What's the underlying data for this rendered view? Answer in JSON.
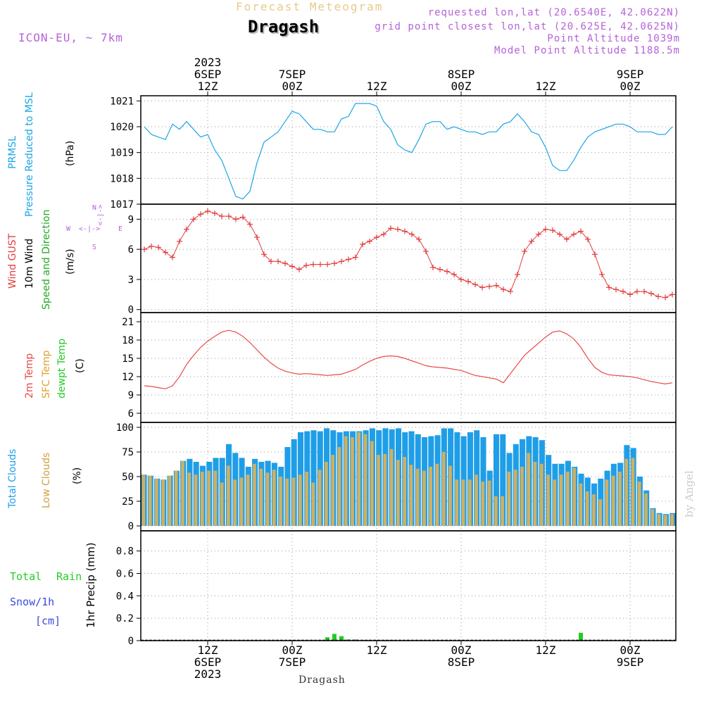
{
  "header": {
    "title": "Forecast Meteogram",
    "location": "Dragash",
    "model": "ICON-EU, ~ 7km",
    "requested": "requested lon,lat (20.6540E, 42.0622N)",
    "grid_point": "grid point closest lon,lat (20.625E, 42.0625N)",
    "point_altitude": "Point Altitude 1039m",
    "model_altitude": "Model Point Altitude 1188.5m",
    "credit": "by Angel",
    "bottom_label": "Dragash"
  },
  "time_axis": {
    "top_labels": [
      {
        "lines": [
          "2023",
          "6SEP",
          "12Z"
        ]
      },
      {
        "lines": [
          "7SEP",
          "00Z"
        ]
      },
      {
        "lines": [
          "12Z"
        ]
      },
      {
        "lines": [
          "8SEP",
          "00Z"
        ]
      },
      {
        "lines": [
          "12Z"
        ]
      },
      {
        "lines": [
          "9SEP",
          "00Z"
        ]
      }
    ],
    "bottom_labels": [
      {
        "lines": [
          "12Z",
          "6SEP",
          "2023"
        ]
      },
      {
        "lines": [
          "00Z",
          "7SEP"
        ]
      },
      {
        "lines": [
          "12Z"
        ]
      },
      {
        "lines": [
          "00Z",
          "8SEP"
        ]
      },
      {
        "lines": [
          "12Z"
        ]
      },
      {
        "lines": [
          "00Z",
          "9SEP"
        ]
      }
    ],
    "tick_hours": [
      12,
      24,
      36,
      48,
      60,
      72
    ],
    "range_hours": [
      2.5,
      78.5
    ]
  },
  "panel_labels": {
    "pressure": [
      "PRMSL",
      "Pressure Reduced to MSL",
      "(hPa)"
    ],
    "wind": [
      "Wind GUST",
      "10m Wind",
      "Speed and Direction",
      "(m/s)"
    ],
    "compass": {
      "n": "N",
      "s": "S",
      "w": "W",
      "e": "E"
    },
    "temp": [
      "2m Temp",
      "SFC Temp",
      "dewpt Temp",
      "(C)"
    ],
    "clouds": [
      "Total Clouds",
      "Low Clouds",
      "(%)"
    ],
    "precip": [
      "Total",
      "Rain",
      "Snow/1h",
      "[cm]",
      "1hr Precip (mm)"
    ]
  },
  "colors": {
    "pressure": "#1ca6e6",
    "gust": "#e23c3c",
    "wind": "#000000",
    "temp2m": "#e84a4a",
    "sfc": "#e0a030",
    "dewpt": "#22cc22",
    "total_clouds": "#1f9ee8",
    "low_clouds": "#d0b060",
    "rain": "#22cc22",
    "snow": "#3b4be0",
    "purple": "#b463d8"
  },
  "chart_data": [
    {
      "type": "line",
      "name": "pressure",
      "y_ticks": [
        1017,
        1018,
        1019,
        1020,
        1021
      ],
      "ylim": [
        1017,
        1021.2
      ],
      "x_start_hour": 3,
      "x_step_hours": 1,
      "values": [
        1020.0,
        1019.7,
        1019.6,
        1019.5,
        1020.1,
        1019.9,
        1020.2,
        1019.9,
        1019.6,
        1019.7,
        1019.1,
        1018.7,
        1018.0,
        1017.3,
        1017.2,
        1017.5,
        1018.6,
        1019.4,
        1019.6,
        1019.8,
        1020.2,
        1020.6,
        1020.5,
        1020.2,
        1019.9,
        1019.9,
        1019.8,
        1019.8,
        1020.3,
        1020.4,
        1020.9,
        1020.9,
        1020.9,
        1020.8,
        1020.2,
        1019.9,
        1019.3,
        1019.1,
        1019.0,
        1019.5,
        1020.1,
        1020.2,
        1020.2,
        1019.9,
        1020.0,
        1019.9,
        1019.8,
        1019.8,
        1019.7,
        1019.8,
        1019.8,
        1020.1,
        1020.2,
        1020.5,
        1020.2,
        1019.8,
        1019.7,
        1019.2,
        1018.5,
        1018.3,
        1018.3,
        1018.7,
        1019.2,
        1019.6,
        1019.8,
        1019.9,
        1020.0,
        1020.1,
        1020.1,
        1020.0,
        1019.8,
        1019.8,
        1019.8,
        1019.7,
        1019.7,
        1020.0
      ]
    },
    {
      "type": "line",
      "name": "wind",
      "y_ticks": [
        0,
        3,
        6,
        9
      ],
      "ylim": [
        -0.3,
        10.5
      ],
      "x_start_hour": 3,
      "x_step_hours": 1,
      "gust": [
        6.0,
        6.3,
        6.2,
        5.7,
        5.2,
        6.8,
        8.0,
        9.0,
        9.5,
        9.8,
        9.6,
        9.3,
        9.3,
        9.0,
        9.2,
        8.5,
        7.2,
        5.5,
        4.8,
        4.8,
        4.6,
        4.3,
        4.0,
        4.4,
        4.5,
        4.5,
        4.5,
        4.6,
        4.8,
        5.0,
        5.2,
        6.5,
        6.8,
        7.2,
        7.5,
        8.1,
        8.0,
        7.8,
        7.5,
        7.0,
        5.8,
        4.2,
        4.0,
        3.8,
        3.5,
        3.0,
        2.8,
        2.5,
        2.2,
        2.3,
        2.4,
        2.0,
        1.8,
        3.5,
        5.8,
        6.8,
        7.5,
        8.0,
        7.9,
        7.5,
        7.0,
        7.5,
        7.8,
        7.0,
        5.5,
        3.5,
        2.2,
        2.0,
        1.8,
        1.5,
        1.8,
        1.8,
        1.6,
        1.3,
        1.2,
        1.5
      ]
    },
    {
      "type": "line",
      "name": "temperature",
      "y_ticks": [
        6,
        9,
        12,
        15,
        18,
        21
      ],
      "ylim": [
        4.5,
        22.5
      ],
      "x_start_hour": 3,
      "x_step_hours": 1,
      "t2m": [
        10.5,
        10.4,
        10.2,
        10.0,
        10.5,
        12.0,
        14.0,
        15.5,
        16.8,
        17.8,
        18.6,
        19.3,
        19.6,
        19.3,
        18.6,
        17.6,
        16.4,
        15.2,
        14.2,
        13.4,
        12.9,
        12.6,
        12.4,
        12.5,
        12.4,
        12.3,
        12.2,
        12.3,
        12.4,
        12.8,
        13.2,
        13.9,
        14.5,
        15.0,
        15.3,
        15.4,
        15.3,
        15.0,
        14.6,
        14.2,
        13.8,
        13.6,
        13.5,
        13.4,
        13.2,
        13.0,
        12.6,
        12.2,
        12.0,
        11.8,
        11.6,
        11.0,
        12.5,
        14.0,
        15.5,
        16.5,
        17.5,
        18.5,
        19.3,
        19.5,
        19.0,
        18.2,
        16.8,
        15.0,
        13.5,
        12.7,
        12.3,
        12.2,
        12.1,
        12.0,
        11.8,
        11.5,
        11.2,
        11.0,
        10.8,
        11.0
      ]
    },
    {
      "type": "bar",
      "name": "clouds",
      "y_ticks": [
        0,
        25,
        50,
        75,
        100
      ],
      "ylim": [
        -5,
        105
      ],
      "x_start_hour": 3,
      "x_step_hours": 1,
      "total": [
        52,
        51,
        48,
        47,
        51,
        56,
        66,
        68,
        65,
        61,
        65,
        69,
        69,
        83,
        74,
        69,
        60,
        68,
        65,
        66,
        64,
        60,
        80,
        88,
        95,
        96,
        97,
        96,
        99,
        97,
        95,
        96,
        96,
        96,
        97,
        99,
        97,
        99,
        98,
        99,
        95,
        96,
        93,
        90,
        91,
        92,
        99,
        99,
        95,
        91,
        95,
        97,
        90,
        56,
        93,
        93,
        74,
        83,
        88,
        91,
        90,
        87,
        72,
        63,
        63,
        66,
        60,
        53,
        49,
        43,
        48,
        56,
        63,
        64,
        82,
        79,
        50,
        36,
        18,
        13,
        12,
        13
      ],
      "low": [
        52,
        51,
        48,
        47,
        51,
        56,
        66,
        54,
        52,
        55,
        56,
        56,
        44,
        61,
        47,
        49,
        52,
        63,
        58,
        54,
        57,
        50,
        48,
        49,
        52,
        55,
        44,
        57,
        65,
        72,
        80,
        91,
        90,
        95,
        93,
        86,
        72,
        73,
        78,
        67,
        70,
        62,
        58,
        56,
        60,
        63,
        75,
        61,
        47,
        47,
        47,
        52,
        45,
        46,
        30,
        30,
        55,
        57,
        60,
        74,
        65,
        63,
        52,
        47,
        52,
        55,
        59,
        43,
        35,
        32,
        27,
        47,
        51,
        55,
        68,
        69,
        45,
        33,
        17,
        12,
        11,
        12
      ]
    },
    {
      "type": "bar",
      "name": "precipitation",
      "y_ticks": [
        0,
        0.2,
        0.4,
        0.6,
        0.8
      ],
      "ylim": [
        0,
        0.98
      ],
      "x_start_hour": 3,
      "x_step_hours": 1,
      "rain": [
        0,
        0,
        0,
        0,
        0,
        0,
        0,
        0,
        0,
        0,
        0,
        0,
        0,
        0,
        0,
        0,
        0,
        0,
        0,
        0,
        0,
        0,
        0,
        0,
        0,
        0,
        0.03,
        0.06,
        0.04,
        0.01,
        0.01,
        0.005,
        0.005,
        0.005,
        0.005,
        0.005,
        0,
        0,
        0,
        0,
        0,
        0,
        0,
        0,
        0,
        0,
        0,
        0,
        0,
        0,
        0,
        0,
        0,
        0,
        0,
        0,
        0,
        0,
        0,
        0,
        0,
        0,
        0.07,
        0,
        0,
        0,
        0,
        0,
        0,
        0,
        0,
        0,
        0,
        0,
        0,
        0,
        0
      ]
    }
  ]
}
